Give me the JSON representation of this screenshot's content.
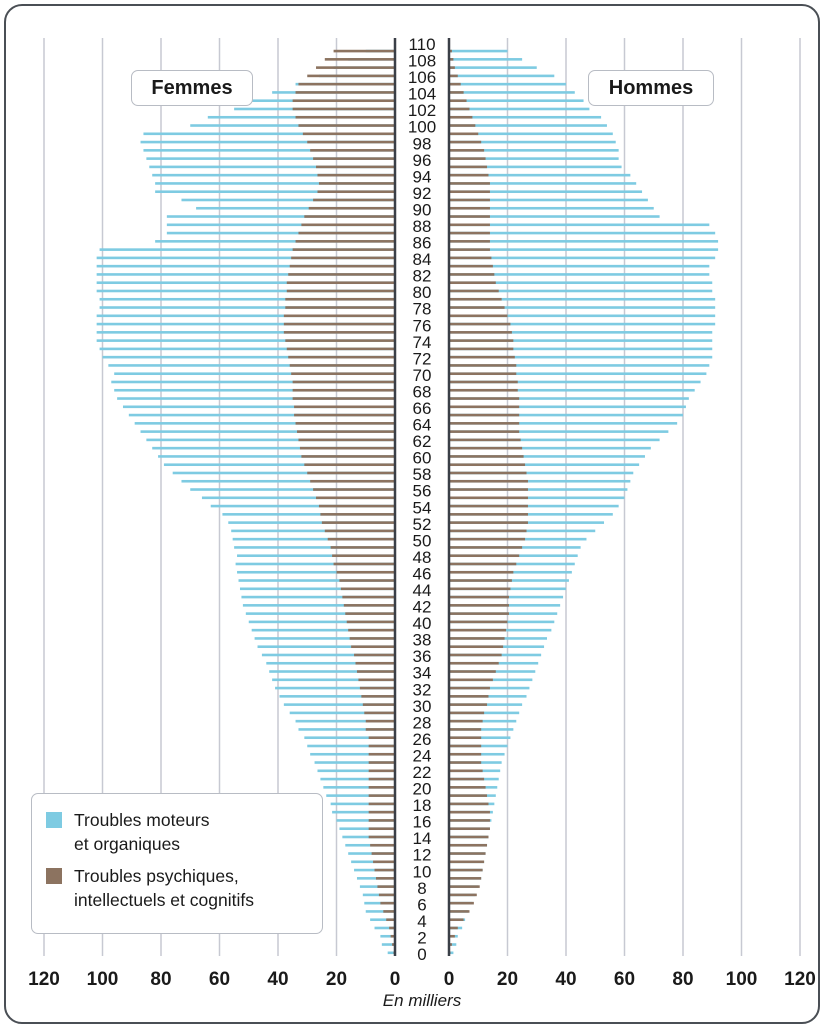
{
  "labels": {
    "left_panel": "Femmes",
    "right_panel": "Hommes",
    "x_axis": "En milliers"
  },
  "legend": [
    {
      "label": "Troubles moteurs\net organiques",
      "color": "#7ecbe2"
    },
    {
      "label": "Troubles psychiques,\nintellectuels et cognitifs",
      "color": "#8c7360"
    }
  ],
  "colors": {
    "motor": "#7ecbe2",
    "psych": "#8c7360",
    "grid": "#c7c9d2",
    "axis": "#3a3f47"
  },
  "chart_data": {
    "type": "bar",
    "orientation": "horizontal-population-pyramid",
    "xlim": [
      0,
      120
    ],
    "x_ticks": [
      120,
      100,
      80,
      60,
      40,
      20,
      0
    ],
    "age_range": [
      0,
      110
    ],
    "age_tick_labels": [
      "0",
      "2",
      "4",
      "6",
      "8",
      "10",
      "12",
      "14",
      "16",
      "18",
      "20",
      "22",
      "24",
      "26",
      "28",
      "30",
      "32",
      "34",
      "36",
      "38",
      "40",
      "42",
      "44",
      "46",
      "48",
      "50",
      "52",
      "54",
      "56",
      "58",
      "60",
      "62",
      "64",
      "66",
      "68",
      "70",
      "72",
      "74",
      "76",
      "78",
      "80",
      "82",
      "84",
      "86",
      "88",
      "90",
      "92",
      "94",
      "96",
      "98",
      "100",
      "102",
      "104",
      "106",
      "108",
      "110"
    ],
    "xlabel": "En milliers",
    "series": [
      {
        "name": "Troubles moteurs et organiques",
        "side": "Femmes",
        "values": [
          2.5,
          4.5,
          5,
          7,
          8.5,
          10,
          10.5,
          11,
          12,
          13,
          14,
          15,
          16,
          17,
          18,
          19,
          20,
          21.5,
          22,
          23.5,
          24.5,
          25.5,
          26.5,
          27.5,
          29,
          30,
          31,
          33,
          34,
          36,
          38,
          39.5,
          41,
          42,
          43,
          44,
          45.5,
          47,
          48,
          49,
          50,
          51,
          52,
          52.5,
          53,
          53.5,
          54,
          54.5,
          54,
          55,
          55.5,
          56,
          57,
          59,
          63,
          66,
          70,
          73,
          76,
          79,
          81,
          83,
          85,
          87,
          89,
          91,
          93,
          95,
          96,
          97,
          96,
          98,
          100,
          101,
          102,
          102,
          102,
          102,
          101,
          101,
          102,
          102,
          102,
          102,
          102,
          101,
          82,
          78,
          78,
          78,
          68,
          73,
          82,
          82,
          83,
          84,
          85,
          86,
          87,
          86,
          70,
          64,
          55,
          49,
          42,
          34,
          26,
          21,
          16,
          10,
          5,
          2,
          1,
          0.5,
          0.3,
          0.2,
          0.1,
          0.1,
          0.05,
          0
        ]
      },
      {
        "name": "Troubles psychiques, intellectuels et cognitifs",
        "side": "Femmes",
        "values": [
          0.5,
          1,
          1.5,
          2,
          3,
          4,
          5,
          5.5,
          6,
          6.5,
          7,
          7.5,
          8,
          8.5,
          9,
          9,
          9,
          9,
          9,
          9,
          9,
          9,
          9,
          9,
          9,
          9,
          9,
          10,
          10,
          10.5,
          11,
          11.5,
          12,
          12.5,
          13,
          13.5,
          14,
          15,
          15.5,
          16,
          16.5,
          17,
          17.5,
          18,
          18.5,
          19,
          20,
          21,
          21.5,
          22,
          23,
          24,
          25,
          25.5,
          26,
          27,
          28,
          29,
          30,
          31,
          32,
          32.5,
          33,
          33.5,
          34,
          34.5,
          34.5,
          35,
          35,
          35,
          35.5,
          36,
          36.5,
          37,
          37.5,
          38,
          38,
          38,
          37.5,
          37.5,
          37,
          37,
          36.5,
          36,
          35.5,
          35,
          34,
          33,
          32,
          31,
          29.5,
          28,
          26.5,
          26,
          26.5,
          27,
          28,
          29,
          30,
          31.5,
          33,
          34,
          35,
          35,
          34,
          33,
          30,
          27,
          24,
          21,
          17,
          14,
          10,
          7,
          4,
          2,
          1,
          0.6,
          0.3,
          0.1,
          0.05
        ]
      },
      {
        "name": "Troubles moteurs et organiques",
        "side": "Hommes",
        "values": [
          1.5,
          2.5,
          3,
          4.5,
          5.5,
          6.5,
          8,
          9,
          10,
          11,
          11.5,
          12,
          12.5,
          13,
          13.5,
          14,
          14.5,
          15,
          15.5,
          16,
          16.5,
          17,
          17.5,
          18,
          19,
          20,
          21,
          22,
          23,
          24,
          25,
          26.5,
          27.5,
          28.5,
          29.5,
          30.5,
          31.5,
          32.5,
          33.5,
          35,
          36,
          37,
          38,
          39,
          40,
          41,
          42,
          43,
          44,
          45,
          47,
          50,
          53,
          56,
          58,
          60,
          61,
          62,
          63,
          65,
          67,
          69,
          72,
          75,
          78,
          80,
          81,
          82,
          84,
          86,
          88,
          89,
          90,
          90,
          90,
          90,
          91,
          91,
          91,
          91,
          90,
          90,
          89,
          89,
          91,
          92,
          92,
          91,
          89,
          72,
          70,
          68,
          66,
          64,
          62,
          59,
          58,
          58,
          57,
          56,
          54,
          52,
          48,
          46,
          43,
          40,
          36,
          30,
          25,
          20,
          15,
          10,
          6,
          3,
          1.5,
          0.5,
          0.2,
          0.1,
          0.05,
          0.05,
          0
        ]
      },
      {
        "name": "Troubles psychiques, intellectuels et cognitifs",
        "side": "Hommes",
        "values": [
          0.5,
          1,
          2,
          3,
          5,
          7,
          8.5,
          9.5,
          10.5,
          11,
          11.5,
          12,
          12.5,
          13,
          13.5,
          14,
          14,
          14,
          13.5,
          13,
          12.5,
          12,
          11.5,
          11,
          11,
          11,
          11,
          11,
          11.5,
          12,
          13,
          13.5,
          14,
          15,
          16,
          17,
          18,
          18.5,
          19,
          19.5,
          20,
          20.5,
          20.5,
          20.5,
          21,
          21.5,
          22,
          23,
          24,
          25,
          26,
          26.5,
          27,
          27,
          27,
          27,
          27,
          27,
          26.5,
          26,
          25.5,
          25,
          24.5,
          24,
          24,
          24,
          24,
          24,
          23.5,
          23.5,
          23,
          23,
          22.5,
          22,
          22,
          21.5,
          21,
          20,
          19,
          18,
          17,
          16,
          15.5,
          15,
          14.5,
          14,
          14,
          14,
          14,
          14,
          14,
          14,
          14,
          14,
          13.5,
          13,
          12.5,
          12,
          11,
          10,
          9,
          8,
          7,
          6,
          5,
          4,
          3,
          2,
          1.5,
          1,
          0.6,
          0.3,
          0.1,
          0.05,
          0.05
        ]
      }
    ]
  }
}
